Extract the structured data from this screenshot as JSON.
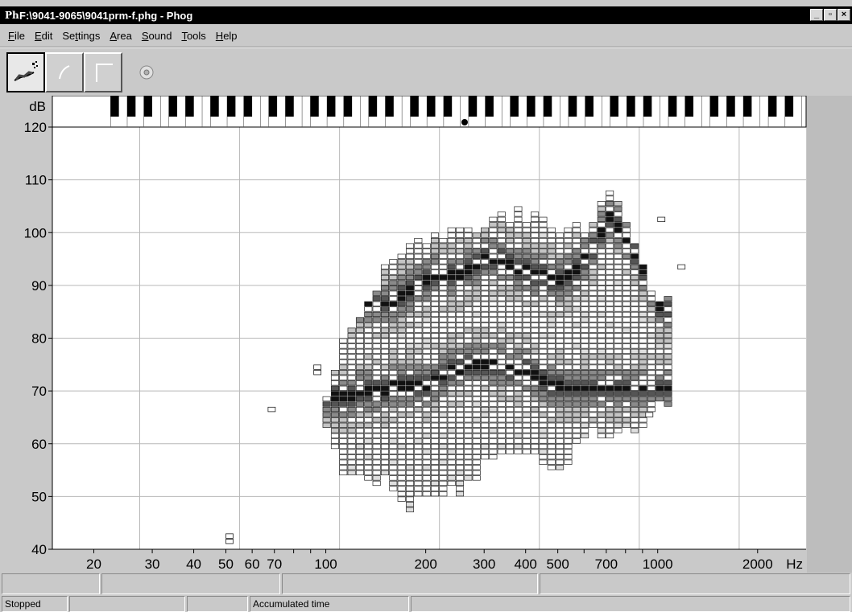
{
  "window": {
    "app_icon_text": "Ph",
    "title": "F:\\9041-9065\\9041prm-f.phg - Phog",
    "controls": {
      "minimize": "_",
      "maximize": "▫",
      "close": "×"
    }
  },
  "menubar": {
    "items": [
      {
        "label": "File",
        "mnemonic": "F"
      },
      {
        "label": "Edit",
        "mnemonic": "E"
      },
      {
        "label": "Settings",
        "mnemonic": "t"
      },
      {
        "label": "Area",
        "mnemonic": "A"
      },
      {
        "label": "Sound",
        "mnemonic": "S"
      },
      {
        "label": "Tools",
        "mnemonic": "T"
      },
      {
        "label": "Help",
        "mnemonic": "H"
      }
    ]
  },
  "toolbar": {
    "tools": [
      {
        "icon": "phonetogram-brush-icon",
        "active": true
      },
      {
        "icon": "arc-icon",
        "active": false
      },
      {
        "icon": "corner-icon",
        "active": false
      }
    ],
    "extra_icon": "cd-icon"
  },
  "chart_data": {
    "type": "heatmap",
    "ylabel": "dB",
    "xlabel": "Hz",
    "ylim": [
      40,
      120
    ],
    "xlim": [
      15,
      2800
    ],
    "x_scale": "log",
    "y_ticks": [
      40,
      50,
      60,
      70,
      80,
      90,
      100,
      110,
      120
    ],
    "x_tick_labels": [
      {
        "value": 20,
        "label": "20"
      },
      {
        "value": 30,
        "label": "30"
      },
      {
        "value": 40,
        "label": "40"
      },
      {
        "value": 50,
        "label": "50"
      },
      {
        "value": 60,
        "label": "60"
      },
      {
        "value": 70,
        "label": "70"
      },
      {
        "value": 100,
        "label": "100"
      },
      {
        "value": 200,
        "label": "200"
      },
      {
        "value": 300,
        "label": "300"
      },
      {
        "value": 400,
        "label": "400"
      },
      {
        "value": 500,
        "label": "500"
      },
      {
        "value": 700,
        "label": "700"
      },
      {
        "value": 1000,
        "label": "1000"
      },
      {
        "value": 2000,
        "label": "2000"
      }
    ],
    "grid": true,
    "piano_keyboard": true,
    "cursor_marker_hz": 262,
    "semitone_range": {
      "low_hz": 98,
      "high_hz": 1050
    },
    "region": {
      "lower_db": [
        [
          98,
          63
        ],
        [
          110,
          54
        ],
        [
          130,
          55
        ],
        [
          150,
          52
        ],
        [
          180,
          48
        ],
        [
          200,
          50
        ],
        [
          250,
          51
        ],
        [
          300,
          57
        ],
        [
          400,
          58
        ],
        [
          500,
          55
        ],
        [
          600,
          62
        ],
        [
          700,
          60
        ],
        [
          800,
          62
        ],
        [
          1000,
          68
        ]
      ],
      "upper_db": [
        [
          98,
          68
        ],
        [
          110,
          78
        ],
        [
          130,
          86
        ],
        [
          150,
          93
        ],
        [
          180,
          97
        ],
        [
          200,
          98
        ],
        [
          250,
          99
        ],
        [
          300,
          101
        ],
        [
          400,
          103
        ],
        [
          500,
          100
        ],
        [
          600,
          99
        ],
        [
          700,
          107
        ],
        [
          800,
          101
        ],
        [
          900,
          90
        ],
        [
          1000,
          86
        ]
      ]
    },
    "main_ridge_db": [
      [
        100,
        68
      ],
      [
        150,
        70
      ],
      [
        200,
        71
      ],
      [
        250,
        74
      ],
      [
        300,
        75
      ],
      [
        400,
        73
      ],
      [
        500,
        70
      ]
    ],
    "upper_ridge_db": [
      [
        150,
        86
      ],
      [
        200,
        91
      ],
      [
        250,
        92
      ],
      [
        300,
        95
      ],
      [
        400,
        92
      ],
      [
        500,
        90
      ],
      [
        600,
        95
      ],
      [
        700,
        103
      ],
      [
        800,
        98
      ],
      [
        1000,
        85
      ]
    ],
    "outliers": [
      {
        "hz": 50,
        "db": 41
      },
      {
        "hz": 50,
        "db": 42
      },
      {
        "hz": 67,
        "db": 66
      },
      {
        "hz": 92,
        "db": 74
      },
      {
        "hz": 92,
        "db": 73
      },
      {
        "hz": 1000,
        "db": 102
      },
      {
        "hz": 1150,
        "db": 93
      },
      {
        "hz": 920,
        "db": 65
      }
    ]
  },
  "statusbar": {
    "row1": [
      "",
      "",
      "",
      ""
    ],
    "row2": {
      "state": "Stopped",
      "field2": "",
      "field3": "",
      "accumulated_label": "Accumulated time",
      "field5": ""
    }
  }
}
